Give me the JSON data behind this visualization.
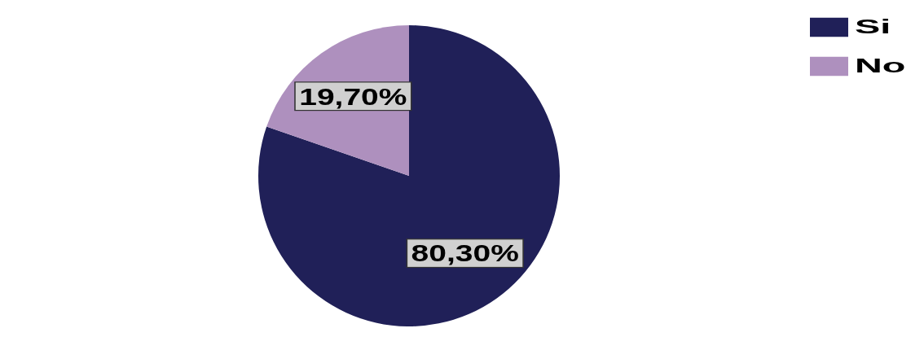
{
  "chart_data": {
    "type": "pie",
    "categories": [
      "Si",
      "No"
    ],
    "values": [
      80.3,
      19.7
    ],
    "colors": [
      "#202058",
      "#ae90be"
    ],
    "value_labels": [
      "80,30%",
      "19,70%"
    ],
    "legend": "top right"
  }
}
